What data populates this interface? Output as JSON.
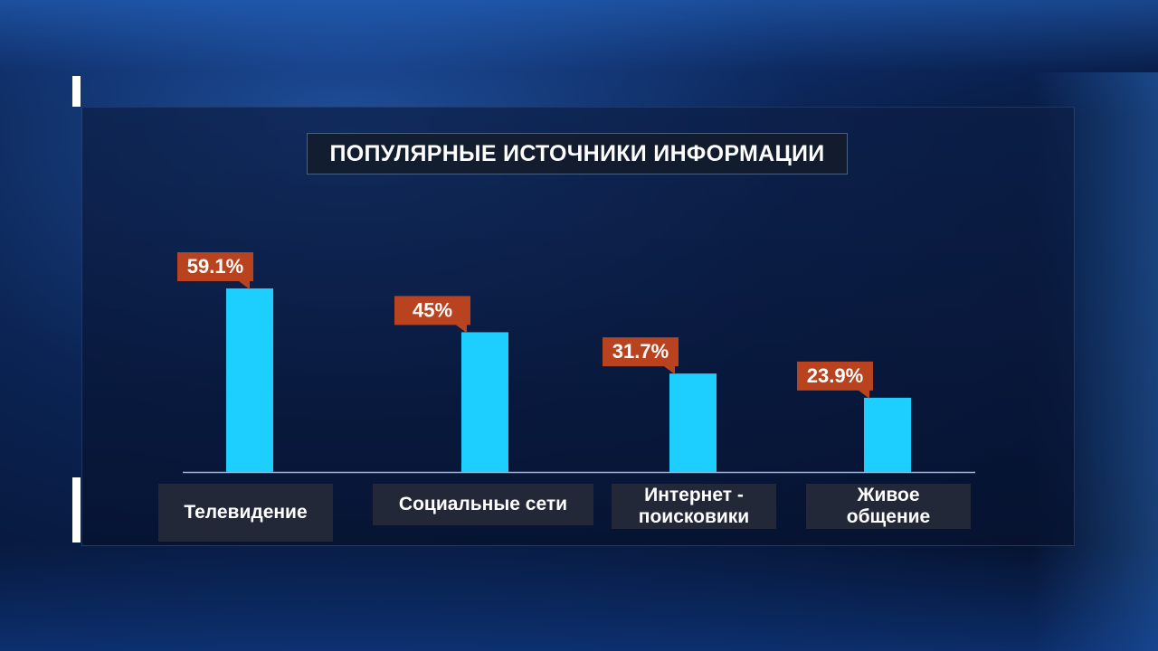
{
  "chart_data": {
    "type": "bar",
    "title": "ПОПУЛЯРНЫЕ ИСТОЧНИКИ ИНФОРМАЦИИ",
    "categories": [
      "Телевидение",
      "Социальные сети",
      "Интернет -\nпоисковики",
      "Живое\nобщение"
    ],
    "values": [
      59.1,
      45,
      31.7,
      23.9
    ],
    "value_labels": [
      "59.1%",
      "45%",
      "31.7%",
      "23.9%"
    ],
    "unit": "%",
    "ylim": [
      0,
      60
    ],
    "grid": false,
    "legend": "none"
  },
  "colors": {
    "bar": "#1ccfff",
    "value_label_bg": "#b8431e",
    "axis": "#9fb6d8"
  }
}
